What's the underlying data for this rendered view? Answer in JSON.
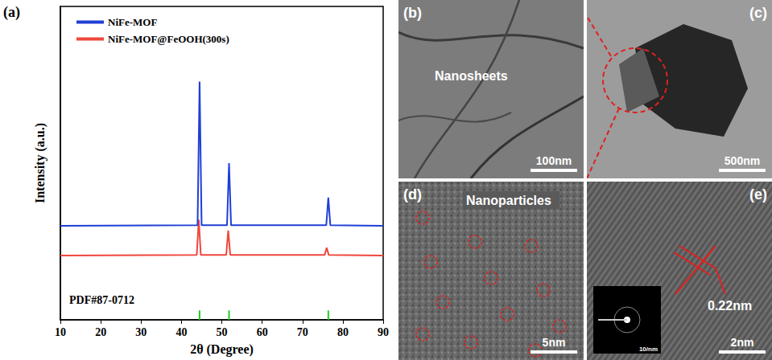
{
  "chart_data": {
    "type": "line",
    "title": "(a)",
    "xlabel": "2θ (Degree)",
    "ylabel": "Intensity (a.u.)",
    "xlim": [
      10,
      90
    ],
    "xticks": [
      10,
      20,
      30,
      40,
      50,
      60,
      70,
      80,
      90
    ],
    "ylim": [
      0,
      100
    ],
    "yticks": [],
    "tick_labels": "x",
    "grid": false,
    "legend": "upper left",
    "series": [
      {
        "name": "NiFe-MOF@FeOOH(300s)",
        "color": "#f0463c",
        "type": "line",
        "x": [
          10,
          43.8,
          44.3,
          44.8,
          51.1,
          51.6,
          52.1,
          75.5,
          76.0,
          76.5,
          90
        ],
        "values": [
          20.5,
          20.7,
          32,
          20.7,
          20.7,
          28.5,
          20.7,
          20.7,
          23,
          20.7,
          20.5
        ]
      },
      {
        "name": "NiFe-MOF",
        "color": "#1f3fd6",
        "type": "line",
        "x": [
          10,
          44.0,
          44.5,
          45.0,
          51.3,
          51.8,
          52.3,
          75.9,
          76.4,
          76.9,
          90
        ],
        "values": [
          30,
          30.2,
          76,
          30.2,
          30.2,
          50,
          30.2,
          30.2,
          39,
          30.2,
          30
        ]
      },
      {
        "name": "PDF#87-0712",
        "color": "#22cc22",
        "type": "bar",
        "x": [
          44.5,
          51.8,
          76.4
        ],
        "values": [
          3,
          3,
          3
        ]
      }
    ]
  },
  "image_panels": [
    {
      "label": "(b)",
      "texts": [
        "Nanosheets"
      ],
      "scale_bar": "100nm"
    },
    {
      "label": "(c)",
      "texts": [],
      "scale_bar": "500nm"
    },
    {
      "label": "(d)",
      "texts": [
        "Nanoparticles"
      ],
      "scale_bar": "5nm"
    },
    {
      "label": "(e)",
      "texts": [
        "0.22nm"
      ],
      "scale_bar": "2nm",
      "inset_scale": "10/nm"
    }
  ]
}
